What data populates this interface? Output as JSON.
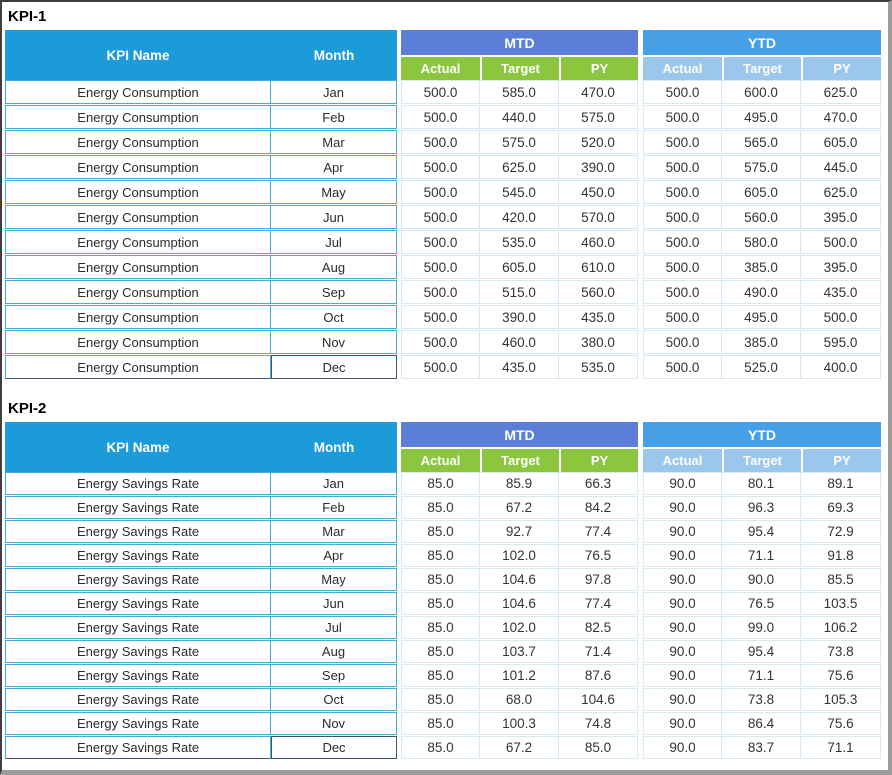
{
  "colors": {
    "header_teal": "#1B9BD8",
    "mtd_blue": "#5B7ED6",
    "ytd_blue": "#47A0E5",
    "mtd_sub_green": "#8CC63F",
    "ytd_sub_lightblue": "#9CC7EC",
    "cell_border_cyan": "#41AEDD",
    "num_border_light": "#D8E9F4",
    "last_row_border_dark": "#44546A"
  },
  "tables": [
    {
      "title": "KPI-1",
      "headers": {
        "kpi_name": "KPI Name",
        "month": "Month",
        "mtd": "MTD",
        "ytd": "YTD",
        "sub_mtd": [
          "Actual",
          "Target",
          "PY"
        ],
        "sub_ytd": [
          "Actual",
          "Target",
          "PY"
        ]
      },
      "rows": [
        {
          "kpi": "Energy Consumption",
          "month": "Jan",
          "mtd": [
            "500.0",
            "585.0",
            "470.0"
          ],
          "ytd": [
            "500.0",
            "600.0",
            "625.0"
          ]
        },
        {
          "kpi": "Energy Consumption",
          "month": "Feb",
          "mtd": [
            "500.0",
            "440.0",
            "575.0"
          ],
          "ytd": [
            "500.0",
            "495.0",
            "470.0"
          ]
        },
        {
          "kpi": "Energy Consumption",
          "month": "Mar",
          "mtd": [
            "500.0",
            "575.0",
            "520.0"
          ],
          "ytd": [
            "500.0",
            "565.0",
            "605.0"
          ]
        },
        {
          "kpi": "Energy Consumption",
          "month": "Apr",
          "mtd": [
            "500.0",
            "625.0",
            "390.0"
          ],
          "ytd": [
            "500.0",
            "575.0",
            "445.0"
          ]
        },
        {
          "kpi": "Energy Consumption",
          "month": "May",
          "mtd": [
            "500.0",
            "545.0",
            "450.0"
          ],
          "ytd": [
            "500.0",
            "605.0",
            "625.0"
          ]
        },
        {
          "kpi": "Energy Consumption",
          "month": "Jun",
          "mtd": [
            "500.0",
            "420.0",
            "570.0"
          ],
          "ytd": [
            "500.0",
            "560.0",
            "395.0"
          ]
        },
        {
          "kpi": "Energy Consumption",
          "month": "Jul",
          "mtd": [
            "500.0",
            "535.0",
            "460.0"
          ],
          "ytd": [
            "500.0",
            "580.0",
            "500.0"
          ]
        },
        {
          "kpi": "Energy Consumption",
          "month": "Aug",
          "mtd": [
            "500.0",
            "605.0",
            "610.0"
          ],
          "ytd": [
            "500.0",
            "385.0",
            "395.0"
          ]
        },
        {
          "kpi": "Energy Consumption",
          "month": "Sep",
          "mtd": [
            "500.0",
            "515.0",
            "560.0"
          ],
          "ytd": [
            "500.0",
            "490.0",
            "435.0"
          ]
        },
        {
          "kpi": "Energy Consumption",
          "month": "Oct",
          "mtd": [
            "500.0",
            "390.0",
            "435.0"
          ],
          "ytd": [
            "500.0",
            "495.0",
            "500.0"
          ]
        },
        {
          "kpi": "Energy Consumption",
          "month": "Nov",
          "mtd": [
            "500.0",
            "460.0",
            "380.0"
          ],
          "ytd": [
            "500.0",
            "385.0",
            "595.0"
          ]
        },
        {
          "kpi": "Energy Consumption",
          "month": "Dec",
          "mtd": [
            "500.0",
            "435.0",
            "535.0"
          ],
          "ytd": [
            "500.0",
            "525.0",
            "400.0"
          ]
        }
      ]
    },
    {
      "title": "KPI-2",
      "headers": {
        "kpi_name": "KPI Name",
        "month": "Month",
        "mtd": "MTD",
        "ytd": "YTD",
        "sub_mtd": [
          "Actual",
          "Target",
          "PY"
        ],
        "sub_ytd": [
          "Actual",
          "Target",
          "PY"
        ]
      },
      "rows": [
        {
          "kpi": "Energy Savings Rate",
          "month": "Jan",
          "mtd": [
            "85.0",
            "85.9",
            "66.3"
          ],
          "ytd": [
            "90.0",
            "80.1",
            "89.1"
          ]
        },
        {
          "kpi": "Energy Savings Rate",
          "month": "Feb",
          "mtd": [
            "85.0",
            "67.2",
            "84.2"
          ],
          "ytd": [
            "90.0",
            "96.3",
            "69.3"
          ]
        },
        {
          "kpi": "Energy Savings Rate",
          "month": "Mar",
          "mtd": [
            "85.0",
            "92.7",
            "77.4"
          ],
          "ytd": [
            "90.0",
            "95.4",
            "72.9"
          ]
        },
        {
          "kpi": "Energy Savings Rate",
          "month": "Apr",
          "mtd": [
            "85.0",
            "102.0",
            "76.5"
          ],
          "ytd": [
            "90.0",
            "71.1",
            "91.8"
          ]
        },
        {
          "kpi": "Energy Savings Rate",
          "month": "May",
          "mtd": [
            "85.0",
            "104.6",
            "97.8"
          ],
          "ytd": [
            "90.0",
            "90.0",
            "85.5"
          ]
        },
        {
          "kpi": "Energy Savings Rate",
          "month": "Jun",
          "mtd": [
            "85.0",
            "104.6",
            "77.4"
          ],
          "ytd": [
            "90.0",
            "76.5",
            "103.5"
          ]
        },
        {
          "kpi": "Energy Savings Rate",
          "month": "Jul",
          "mtd": [
            "85.0",
            "102.0",
            "82.5"
          ],
          "ytd": [
            "90.0",
            "99.0",
            "106.2"
          ]
        },
        {
          "kpi": "Energy Savings Rate",
          "month": "Aug",
          "mtd": [
            "85.0",
            "103.7",
            "71.4"
          ],
          "ytd": [
            "90.0",
            "95.4",
            "73.8"
          ]
        },
        {
          "kpi": "Energy Savings Rate",
          "month": "Sep",
          "mtd": [
            "85.0",
            "101.2",
            "87.6"
          ],
          "ytd": [
            "90.0",
            "71.1",
            "75.6"
          ]
        },
        {
          "kpi": "Energy Savings Rate",
          "month": "Oct",
          "mtd": [
            "85.0",
            "68.0",
            "104.6"
          ],
          "ytd": [
            "90.0",
            "73.8",
            "105.3"
          ]
        },
        {
          "kpi": "Energy Savings Rate",
          "month": "Nov",
          "mtd": [
            "85.0",
            "100.3",
            "74.8"
          ],
          "ytd": [
            "90.0",
            "86.4",
            "75.6"
          ]
        },
        {
          "kpi": "Energy Savings Rate",
          "month": "Dec",
          "mtd": [
            "85.0",
            "67.2",
            "85.0"
          ],
          "ytd": [
            "90.0",
            "83.7",
            "71.1"
          ]
        }
      ]
    }
  ]
}
